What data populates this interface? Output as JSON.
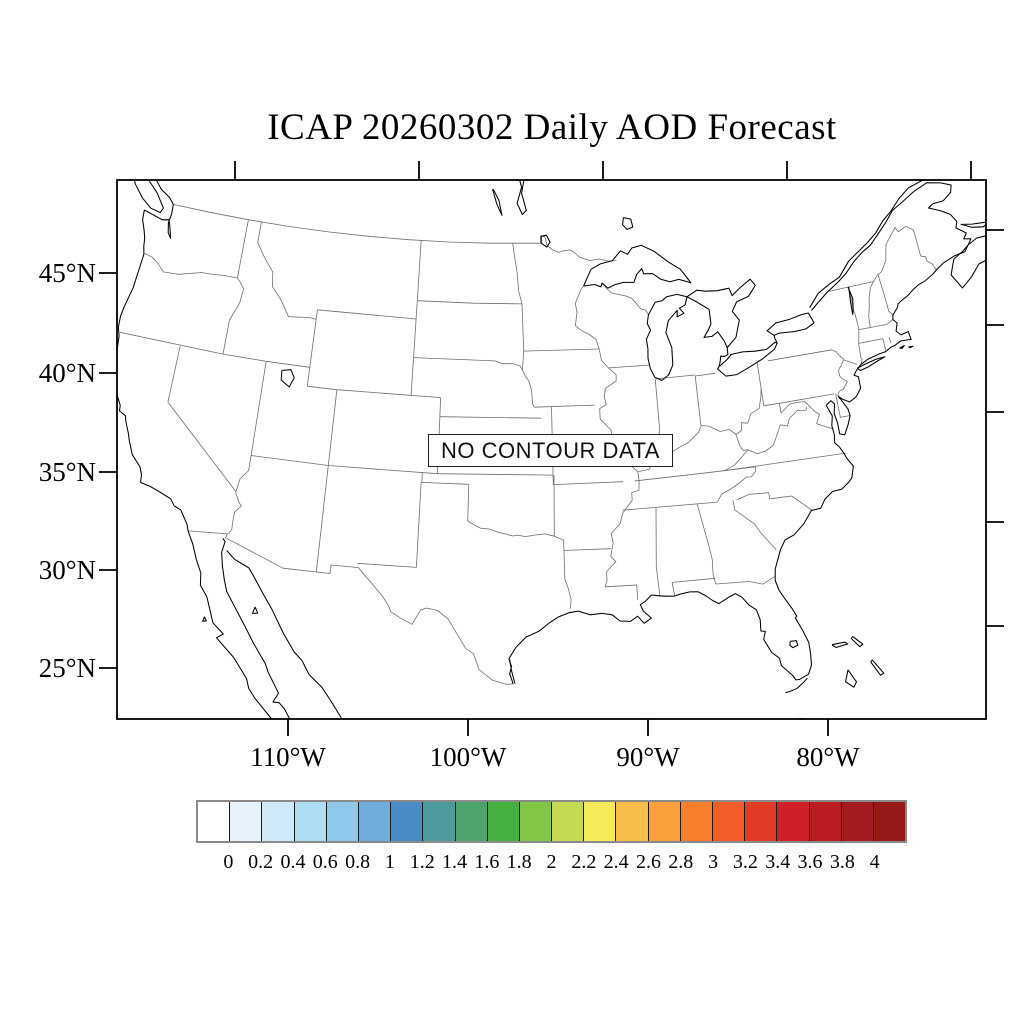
{
  "title": "ICAP 20260302 Daily AOD Forecast",
  "map": {
    "no_data_label": "NO CONTOUR DATA",
    "lat_labels": [
      "45°N",
      "40°N",
      "35°N",
      "30°N",
      "25°N"
    ],
    "lon_labels": [
      "110°W",
      "100°W",
      "90°W",
      "80°W"
    ]
  },
  "colorbar": {
    "tick_labels": [
      "0",
      "0.2",
      "0.4",
      "0.6",
      "0.8",
      "1",
      "1.2",
      "1.4",
      "1.6",
      "1.8",
      "2",
      "2.2",
      "2.4",
      "2.6",
      "2.8",
      "3",
      "3.2",
      "3.4",
      "3.6",
      "3.8",
      "4"
    ],
    "cell_colors": [
      "#FFFFFF",
      "#E6F2FB",
      "#CFE9F8",
      "#AFDDF4",
      "#8FC8EA",
      "#6FAEDC",
      "#4A8CC6",
      "#4C9A9E",
      "#4CA46C",
      "#44B13F",
      "#82C646",
      "#C5DA52",
      "#F6EA5A",
      "#F7BC4A",
      "#F9A03D",
      "#F87E2B",
      "#F25C26",
      "#E23B26",
      "#CE2026",
      "#BA1C22",
      "#A51A1E",
      "#951917"
    ]
  }
}
